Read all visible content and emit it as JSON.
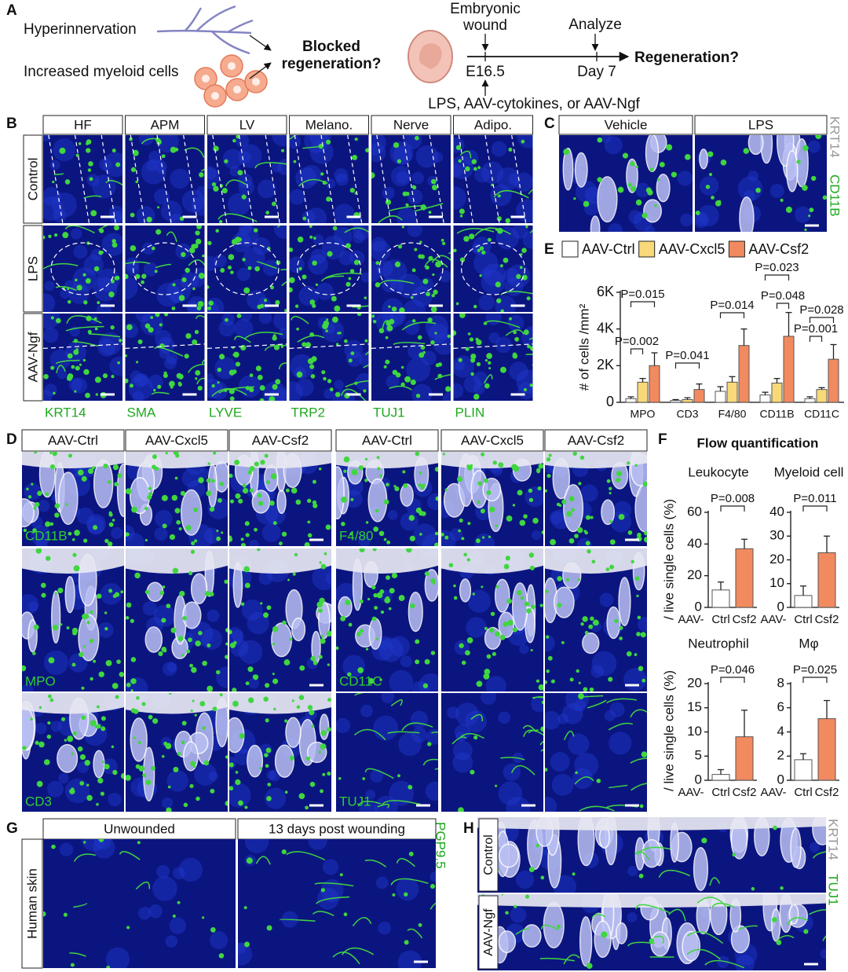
{
  "panel_labels": [
    "A",
    "B",
    "C",
    "D",
    "E",
    "F",
    "G",
    "H"
  ],
  "panel_a": {
    "hyperinnervation": "Hyperinnervation",
    "myeloid": "Increased myeloid cells",
    "blocked": [
      "Blocked",
      "regeneration?"
    ],
    "wound": [
      "Embryonic",
      "wound"
    ],
    "analyze": "Analyze",
    "start": "E16.5",
    "end": "Day 7",
    "outcome": "Regeneration?",
    "treatments": "LPS, AAV-cytokines, or AAV-Ngf"
  },
  "panel_b": {
    "columns": [
      "HF",
      "APM",
      "LV",
      "Melano.",
      "Nerve",
      "Adipo."
    ],
    "rows": [
      "Control",
      "LPS",
      "AAV-Ngf"
    ],
    "markers": [
      "KRT14",
      "SMA",
      "LYVE",
      "TRP2",
      "TUJ1",
      "PLIN"
    ]
  },
  "panel_c": {
    "columns": [
      "Vehicle",
      "LPS"
    ],
    "stains": [
      "KRT14",
      "CD11B"
    ]
  },
  "panel_d": {
    "columns": [
      "AAV-Ctrl",
      "AAV-Cxcl5",
      "AAV-Csf2",
      "AAV-Ctrl",
      "AAV-Cxcl5",
      "AAV-Csf2"
    ],
    "markers": [
      "CD11B",
      "F4/80",
      "MPO",
      "CD11C",
      "CD3",
      "TUJ1"
    ]
  },
  "panel_f": {
    "title": "Flow quantification",
    "y_label": "/ live single cells (%)"
  },
  "panel_g": {
    "columns": [
      "Unwounded",
      "13 days post wounding"
    ],
    "row": "Human skin",
    "stain": "PGP9.5"
  },
  "panel_h": {
    "rows": [
      "Control",
      "AAV-Ngf"
    ],
    "stains": [
      "KRT14",
      "TUJ1"
    ]
  },
  "chart_data": [
    {
      "type": "bar",
      "y_label": "# of cells /mm²",
      "categories": [
        "MPO",
        "CD3",
        "F4/80",
        "CD11B",
        "CD11C"
      ],
      "series": [
        {
          "name": "AAV-Ctrl",
          "color": "#ffffff",
          "values": [
            200,
            100,
            600,
            400,
            200
          ],
          "errors": [
            100,
            50,
            250,
            150,
            100
          ]
        },
        {
          "name": "AAV-Cxcl5",
          "color": "#f8d878",
          "values": [
            1100,
            150,
            1100,
            1050,
            700
          ],
          "errors": [
            200,
            100,
            300,
            250,
            100
          ]
        },
        {
          "name": "AAV-Csf2",
          "color": "#f28a60",
          "values": [
            2000,
            700,
            3100,
            3600,
            2350
          ],
          "errors": [
            700,
            300,
            900,
            1300,
            800
          ]
        }
      ],
      "ylim": [
        0,
        6000
      ],
      "yticks": [
        0,
        {
          "value": 2000,
          "label": "2K"
        },
        {
          "value": 4000,
          "label": "4K"
        },
        {
          "value": 6000,
          "label": "6K"
        }
      ],
      "annotations": [
        "P=0.015",
        "P=0.002",
        "P=0.041",
        "P=0.014",
        "P=0.023",
        "P=0.048",
        "P=0.028",
        "P=0.001"
      ]
    },
    {
      "type": "bar",
      "title": "Leukocyte",
      "x_prefix": "AAV-",
      "categories": [
        "Ctrl",
        "Csf2"
      ],
      "colors": [
        "#ffffff",
        "#f28a60"
      ],
      "values": [
        11,
        37
      ],
      "errors": [
        5,
        6
      ],
      "ylim": [
        0,
        60
      ],
      "yticks": [
        0,
        20,
        40,
        60
      ],
      "annotation": "P=0.008"
    },
    {
      "type": "bar",
      "title": "Myeloid cell",
      "x_prefix": "AAV-",
      "categories": [
        "Ctrl",
        "Csf2"
      ],
      "colors": [
        "#ffffff",
        "#f28a60"
      ],
      "values": [
        5,
        23
      ],
      "errors": [
        4,
        7
      ],
      "ylim": [
        0,
        40
      ],
      "yticks": [
        0,
        10,
        20,
        30,
        40
      ],
      "annotation": "P=0.011"
    },
    {
      "type": "bar",
      "title": "Neutrophil",
      "x_prefix": "AAV-",
      "categories": [
        "Ctrl",
        "Csf2"
      ],
      "colors": [
        "#ffffff",
        "#f28a60"
      ],
      "values": [
        1.2,
        9
      ],
      "errors": [
        1,
        5.5
      ],
      "ylim": [
        0,
        20
      ],
      "yticks": [
        0,
        5,
        10,
        15,
        20
      ],
      "annotation": "P=0.046"
    },
    {
      "type": "bar",
      "title": "Mφ",
      "x_prefix": "AAV-",
      "categories": [
        "Ctrl",
        "Csf2"
      ],
      "colors": [
        "#ffffff",
        "#f28a60"
      ],
      "values": [
        1.7,
        5.1
      ],
      "errors": [
        0.5,
        1.5
      ],
      "ylim": [
        0,
        8
      ],
      "yticks": [
        0,
        2,
        4,
        6,
        8
      ],
      "annotation": "P=0.025"
    }
  ]
}
